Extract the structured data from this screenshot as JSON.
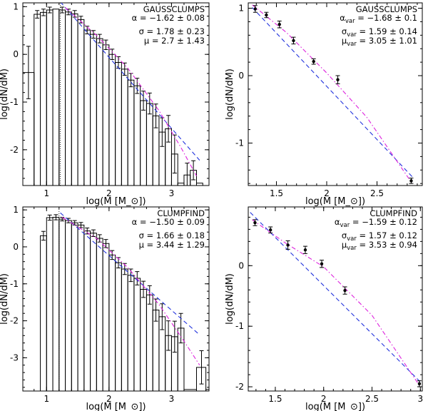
{
  "chart_data": [
    {
      "id": "a",
      "type": "histogram",
      "method": "GAUSSCLUMPS",
      "xlabel": "log(M [M_⊙])",
      "ylabel": "log(dN/dM)",
      "xlim": [
        0.62,
        3.6
      ],
      "ylim": [
        -2.75,
        1.08
      ],
      "xticks": [
        1,
        2,
        3
      ],
      "yticks": [
        -2,
        -1,
        0,
        1
      ],
      "completeness_limit": 1.22,
      "annotations": [
        {
          "sym": "α",
          "sub": "",
          "text": " = −1.62 ± 0.08"
        },
        {
          "sym": "σ",
          "sub": "",
          "text": " = 1.78 ± 0.23"
        },
        {
          "sym": "μ",
          "sub": "",
          "text": " = 2.7 ± 1.43"
        }
      ],
      "bins": [
        [
          0.62,
          0.8,
          -0.38
        ],
        [
          0.8,
          0.9,
          0.84
        ],
        [
          0.9,
          1.0,
          0.88
        ],
        [
          1.0,
          1.1,
          0.93
        ],
        [
          1.1,
          1.2,
          0.95
        ],
        [
          1.2,
          1.3,
          0.93
        ],
        [
          1.3,
          1.4,
          0.89
        ],
        [
          1.4,
          1.5,
          0.85
        ],
        [
          1.5,
          1.6,
          0.73
        ],
        [
          1.6,
          1.7,
          0.51
        ],
        [
          1.7,
          1.8,
          0.42
        ],
        [
          1.8,
          1.9,
          0.33
        ],
        [
          1.9,
          2.0,
          0.2
        ],
        [
          2.0,
          2.1,
          0.0
        ],
        [
          2.1,
          2.2,
          -0.17
        ],
        [
          2.2,
          2.3,
          -0.31
        ],
        [
          2.3,
          2.4,
          -0.54
        ],
        [
          2.4,
          2.5,
          -0.66
        ],
        [
          2.5,
          2.6,
          -0.97
        ],
        [
          2.6,
          2.7,
          -1.03
        ],
        [
          2.7,
          2.8,
          -1.29
        ],
        [
          2.8,
          2.9,
          -1.63
        ],
        [
          2.9,
          3.0,
          -1.56
        ],
        [
          3.0,
          3.1,
          -2.09
        ],
        [
          3.1,
          3.2,
          -2.7
        ],
        [
          3.2,
          3.3,
          -2.53
        ],
        [
          3.3,
          3.4,
          -2.43
        ],
        [
          3.4,
          3.5,
          -2.7
        ],
        [
          3.5,
          3.6,
          -2.75
        ]
      ],
      "error_bars": [
        [
          0.71,
          -0.38,
          0.55
        ],
        [
          0.85,
          0.84,
          0.08
        ],
        [
          0.95,
          0.88,
          0.07
        ],
        [
          1.05,
          0.93,
          0.06
        ],
        [
          1.25,
          0.93,
          0.06
        ],
        [
          1.35,
          0.89,
          0.06
        ],
        [
          1.45,
          0.85,
          0.07
        ],
        [
          1.55,
          0.73,
          0.07
        ],
        [
          1.65,
          0.51,
          0.08
        ],
        [
          1.75,
          0.42,
          0.08
        ],
        [
          1.85,
          0.33,
          0.09
        ],
        [
          1.95,
          0.2,
          0.1
        ],
        [
          2.05,
          0.0,
          0.11
        ],
        [
          2.15,
          -0.17,
          0.12
        ],
        [
          2.25,
          -0.31,
          0.13
        ],
        [
          2.35,
          -0.54,
          0.14
        ],
        [
          2.45,
          -0.66,
          0.16
        ],
        [
          2.55,
          -0.97,
          0.2
        ],
        [
          2.65,
          -1.03,
          0.22
        ],
        [
          2.75,
          -1.29,
          0.25
        ],
        [
          2.85,
          -1.63,
          0.3
        ],
        [
          2.95,
          -1.56,
          0.28
        ],
        [
          3.05,
          -2.09,
          0.4
        ],
        [
          3.25,
          -2.53,
          0.25
        ],
        [
          3.35,
          -2.43,
          0.2
        ]
      ],
      "fit_lines": [
        {
          "style": "dashed",
          "color": "#2233dd",
          "points": [
            [
              1.22,
              1.1
            ],
            [
              3.45,
              -2.22
            ]
          ]
        },
        {
          "style": "dashdot",
          "color": "#dd22dd",
          "points": [
            [
              1.3,
              0.98
            ],
            [
              1.8,
              0.4
            ],
            [
              2.3,
              -0.29
            ],
            [
              2.8,
              -1.18
            ],
            [
              3.15,
              -1.95
            ],
            [
              3.4,
              -2.55
            ]
          ]
        }
      ]
    },
    {
      "id": "b",
      "type": "scatter",
      "method": "GAUSSCLUMPS",
      "xlabel": "log(M [M_⊙])",
      "ylabel": "log(dN/dM)",
      "xlim": [
        1.22,
        2.95
      ],
      "ylim": [
        -1.63,
        1.08
      ],
      "xticks": [
        1.5,
        2,
        2.5
      ],
      "yticks": [
        -1,
        0,
        1
      ],
      "annotations": [
        {
          "sym": "α",
          "sub": "var",
          "text": " = −1.68 ± 0.1"
        },
        {
          "sym": "σ",
          "sub": "var",
          "text": " = 1.59 ± 0.14"
        },
        {
          "sym": "μ",
          "sub": "var",
          "text": " = 3.05 ± 1.01"
        }
      ],
      "points": [
        [
          1.29,
          0.99,
          0.05
        ],
        [
          1.4,
          0.9,
          0.04
        ],
        [
          1.53,
          0.76,
          0.05
        ],
        [
          1.67,
          0.52,
          0.05
        ],
        [
          1.87,
          0.21,
          0.04
        ],
        [
          2.11,
          -0.06,
          0.06
        ],
        [
          2.84,
          -1.56,
          0.04
        ]
      ],
      "fit_lines": [
        {
          "style": "dashed",
          "color": "#2233dd",
          "points": [
            [
              1.26,
              1.01
            ],
            [
              2.85,
              -1.5
            ]
          ]
        },
        {
          "style": "dashdot",
          "color": "#dd22dd",
          "points": [
            [
              1.26,
              1.05
            ],
            [
              1.6,
              0.64
            ],
            [
              2.0,
              0.04
            ],
            [
              2.4,
              -0.62
            ],
            [
              2.85,
              -1.6
            ]
          ]
        }
      ]
    },
    {
      "id": "c",
      "type": "histogram",
      "method": "CLUMPFIND",
      "xlabel": "log(M [M_⊙])",
      "ylabel": "log(dN/dM)",
      "xlim": [
        0.62,
        3.6
      ],
      "ylim": [
        -3.9,
        1.08
      ],
      "xticks": [
        1,
        2,
        3
      ],
      "yticks": [
        -3,
        -2,
        -1,
        0,
        1
      ],
      "completeness_limit": 1.2,
      "annotations": [
        {
          "sym": "α",
          "sub": "",
          "text": " = −1.50 ± 0.09"
        },
        {
          "sym": "σ",
          "sub": "",
          "text": " = 1.66 ± 0.18"
        },
        {
          "sym": "μ",
          "sub": "",
          "text": " = 3.44 ± 1.29"
        }
      ],
      "bins": [
        [
          0.9,
          1.0,
          0.3
        ],
        [
          1.0,
          1.1,
          0.79
        ],
        [
          1.1,
          1.2,
          0.8
        ],
        [
          1.2,
          1.3,
          0.75
        ],
        [
          1.3,
          1.4,
          0.71
        ],
        [
          1.4,
          1.5,
          0.65
        ],
        [
          1.5,
          1.6,
          0.59
        ],
        [
          1.6,
          1.7,
          0.43
        ],
        [
          1.7,
          1.8,
          0.37
        ],
        [
          1.8,
          1.9,
          0.23
        ],
        [
          1.9,
          2.0,
          0.09
        ],
        [
          2.0,
          2.1,
          -0.22
        ],
        [
          2.1,
          2.2,
          -0.43
        ],
        [
          2.2,
          2.3,
          -0.6
        ],
        [
          2.3,
          2.4,
          -0.77
        ],
        [
          2.4,
          2.5,
          -0.85
        ],
        [
          2.5,
          2.6,
          -1.15
        ],
        [
          2.6,
          2.7,
          -1.3
        ],
        [
          2.7,
          2.8,
          -1.71
        ],
        [
          2.8,
          2.9,
          -1.89
        ],
        [
          2.9,
          3.0,
          -2.4
        ],
        [
          3.0,
          3.1,
          -2.43
        ],
        [
          3.1,
          3.2,
          -2.2
        ],
        [
          3.2,
          3.4,
          -3.86
        ],
        [
          3.4,
          3.55,
          -3.26
        ],
        [
          3.55,
          3.6,
          -3.86
        ]
      ],
      "error_bars": [
        [
          0.95,
          0.3,
          0.12
        ],
        [
          1.05,
          0.79,
          0.07
        ],
        [
          1.15,
          0.8,
          0.07
        ],
        [
          1.25,
          0.75,
          0.05
        ],
        [
          1.35,
          0.71,
          0.06
        ],
        [
          1.45,
          0.65,
          0.06
        ],
        [
          1.55,
          0.59,
          0.07
        ],
        [
          1.65,
          0.43,
          0.08
        ],
        [
          1.75,
          0.37,
          0.09
        ],
        [
          1.85,
          0.23,
          0.1
        ],
        [
          1.95,
          0.09,
          0.11
        ],
        [
          2.05,
          -0.22,
          0.12
        ],
        [
          2.15,
          -0.43,
          0.14
        ],
        [
          2.25,
          -0.6,
          0.15
        ],
        [
          2.35,
          -0.77,
          0.17
        ],
        [
          2.45,
          -0.85,
          0.18
        ],
        [
          2.55,
          -1.15,
          0.22
        ],
        [
          2.65,
          -1.3,
          0.25
        ],
        [
          2.75,
          -1.71,
          0.3
        ],
        [
          2.85,
          -1.89,
          0.35
        ],
        [
          2.95,
          -2.4,
          0.4
        ],
        [
          3.05,
          -2.43,
          0.42
        ],
        [
          3.15,
          -2.2,
          0.4
        ],
        [
          3.48,
          -3.26,
          0.45
        ]
      ],
      "fit_lines": [
        {
          "style": "dashed",
          "color": "#2233dd",
          "points": [
            [
              1.22,
              0.92
            ],
            [
              3.45,
              -2.38
            ]
          ]
        },
        {
          "style": "dashdot",
          "color": "#dd22dd",
          "points": [
            [
              1.25,
              0.8
            ],
            [
              1.8,
              0.23
            ],
            [
              2.3,
              -0.56
            ],
            [
              2.8,
              -1.56
            ],
            [
              3.2,
              -2.55
            ],
            [
              3.45,
              -3.2
            ]
          ]
        }
      ]
    },
    {
      "id": "d",
      "type": "scatter",
      "method": "CLUMPFIND",
      "xlabel": "log(M [M_⊙])",
      "ylabel": "log(dN/dM)",
      "xlim": [
        1.22,
        3.02
      ],
      "ylim": [
        -2.07,
        0.97
      ],
      "xticks": [
        1.5,
        2,
        2.5,
        3
      ],
      "yticks": [
        -2,
        -1,
        0
      ],
      "annotations": [
        {
          "sym": "α",
          "sub": "var",
          "text": " = −1.59 ± 0.12"
        },
        {
          "sym": "σ",
          "sub": "var",
          "text": " = 1.57 ± 0.12"
        },
        {
          "sym": "μ",
          "sub": "var",
          "text": " = 3.53 ± 0.94"
        }
      ],
      "points": [
        [
          1.29,
          0.71,
          0.05
        ],
        [
          1.45,
          0.59,
          0.05
        ],
        [
          1.63,
          0.34,
          0.07
        ],
        [
          1.81,
          0.26,
          0.06
        ],
        [
          1.98,
          0.03,
          0.06
        ],
        [
          2.22,
          -0.41,
          0.06
        ],
        [
          2.99,
          -1.95,
          0.05
        ]
      ],
      "fit_lines": [
        {
          "style": "dashed",
          "color": "#2233dd",
          "points": [
            [
              1.24,
              0.88
            ],
            [
              3.0,
              -1.92
            ]
          ]
        },
        {
          "style": "dashdot",
          "color": "#dd22dd",
          "points": [
            [
              1.26,
              0.76
            ],
            [
              1.6,
              0.38
            ],
            [
              2.0,
              -0.02
            ],
            [
              2.5,
              -0.82
            ],
            [
              3.0,
              -2.0
            ]
          ]
        }
      ]
    }
  ]
}
